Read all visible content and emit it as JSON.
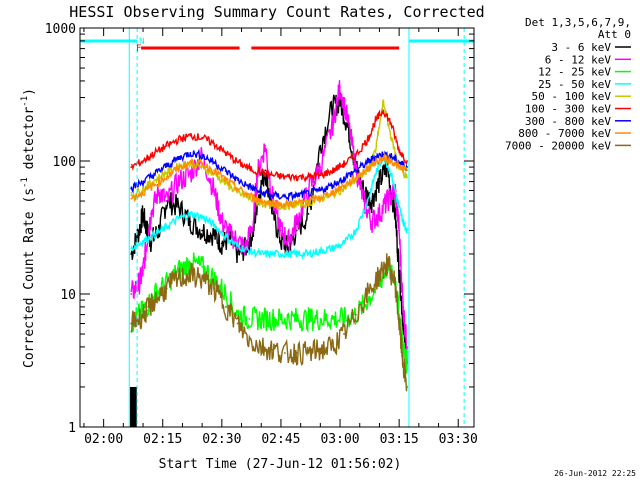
{
  "chart_data": {
    "type": "line",
    "title": "HESSI Observing Summary Count Rates, Corrected",
    "xlabel": "Start Time (27-Jun-12 01:56:02)",
    "ylabel_main": "Corrected Count Rate (s",
    "ylabel_sup1": "-1",
    "ylabel_mid": " detector",
    "ylabel_sup2": "-1",
    "ylabel_end": ")",
    "yscale": "log",
    "ylim": [
      1,
      1000
    ],
    "xlim_min": [
      -4.0,
      96.0
    ],
    "x_ticks": [
      {
        "t": 2,
        "label": "02:00"
      },
      {
        "t": 17,
        "label": "02:15"
      },
      {
        "t": 32,
        "label": "02:30"
      },
      {
        "t": 47,
        "label": "02:45"
      },
      {
        "t": 62,
        "label": "03:00"
      },
      {
        "t": 77,
        "label": "03:15"
      },
      {
        "t": 92,
        "label": "03:30"
      }
    ],
    "y_ticks": [
      {
        "v": 1,
        "label": "1"
      },
      {
        "v": 10,
        "label": "10"
      },
      {
        "v": 100,
        "label": "100"
      },
      {
        "v": 1000,
        "label": "1000"
      }
    ],
    "legend_header": [
      "Det 1,3,5,6,7,9,",
      "Att 0"
    ],
    "legend_placement": "right",
    "series": [
      {
        "name": "3 - 6 keV",
        "color": "#000000",
        "x": [
          9,
          11,
          12,
          13,
          14,
          16,
          18,
          21,
          24,
          27,
          30,
          32,
          34,
          36,
          38,
          40,
          41,
          43,
          45,
          47,
          49,
          51,
          54,
          57,
          60,
          62,
          64,
          66,
          68,
          70,
          72,
          74,
          76,
          77,
          78,
          79
        ],
        "values": [
          20,
          30,
          40,
          30,
          25,
          30,
          50,
          45,
          35,
          30,
          28,
          24,
          26,
          20,
          22,
          30,
          50,
          85,
          40,
          25,
          22,
          30,
          40,
          130,
          250,
          280,
          180,
          90,
          60,
          50,
          70,
          90,
          40,
          15,
          6,
          3
        ]
      },
      {
        "name": "6 - 12 keV",
        "color": "#ff00ff",
        "x": [
          9,
          11,
          12,
          13,
          14,
          16,
          18,
          21,
          24,
          27,
          30,
          32,
          34,
          36,
          38,
          40,
          41,
          43,
          45,
          47,
          49,
          51,
          54,
          57,
          60,
          62,
          64,
          66,
          68,
          70,
          72,
          74,
          76,
          77,
          78,
          79
        ],
        "values": [
          10,
          12,
          15,
          25,
          40,
          60,
          50,
          70,
          80,
          110,
          60,
          35,
          28,
          25,
          22,
          35,
          80,
          130,
          50,
          30,
          25,
          35,
          60,
          90,
          180,
          360,
          200,
          90,
          50,
          35,
          40,
          50,
          60,
          30,
          8,
          4
        ]
      },
      {
        "name": "12 - 25 keV",
        "color": "#00ff00",
        "x": [
          9,
          11,
          13,
          15,
          18,
          21,
          24,
          27,
          30,
          33,
          36,
          39,
          42,
          45,
          48,
          51,
          54,
          57,
          60,
          63,
          66,
          69,
          72,
          74,
          76,
          77,
          78,
          79
        ],
        "values": [
          6,
          7,
          8,
          10,
          12,
          15,
          17,
          16,
          13,
          10,
          7,
          6.5,
          6.5,
          6.5,
          6.5,
          6.5,
          6.5,
          6.5,
          6.5,
          6.5,
          7,
          9,
          12,
          16,
          13,
          7,
          4,
          3
        ]
      },
      {
        "name": "25 - 50 keV",
        "color": "#00ffff",
        "x": [
          9,
          12,
          15,
          18,
          21,
          24,
          27,
          30,
          33,
          36,
          39,
          42,
          45,
          48,
          51,
          54,
          57,
          60,
          63,
          66,
          69,
          71,
          73,
          75,
          77,
          78,
          79
        ],
        "values": [
          22,
          25,
          28,
          32,
          37,
          40,
          38,
          33,
          27,
          23,
          21,
          20,
          20,
          20,
          20,
          20,
          21,
          22,
          24,
          30,
          50,
          80,
          110,
          80,
          45,
          35,
          30
        ]
      },
      {
        "name": "50 - 100 keV",
        "color": "#c8c800",
        "x": [
          9,
          12,
          15,
          18,
          21,
          24,
          27,
          30,
          33,
          36,
          39,
          42,
          45,
          48,
          51,
          54,
          57,
          60,
          63,
          66,
          69,
          71,
          73,
          75,
          77,
          79
        ],
        "values": [
          55,
          62,
          72,
          82,
          92,
          95,
          90,
          80,
          68,
          58,
          52,
          48,
          46,
          46,
          47,
          48,
          52,
          56,
          62,
          72,
          85,
          120,
          280,
          150,
          90,
          75
        ]
      },
      {
        "name": "100 - 300 keV",
        "color": "#ff0000",
        "x": [
          9,
          12,
          15,
          18,
          21,
          24,
          27,
          30,
          33,
          36,
          39,
          42,
          45,
          48,
          51,
          54,
          57,
          60,
          63,
          66,
          69,
          71,
          73,
          75,
          77,
          79
        ],
        "values": [
          90,
          100,
          115,
          130,
          145,
          155,
          150,
          135,
          115,
          98,
          88,
          82,
          78,
          76,
          76,
          76,
          78,
          84,
          95,
          110,
          145,
          200,
          240,
          190,
          120,
          100
        ]
      },
      {
        "name": "300 - 800 keV",
        "color": "#0000ff",
        "x": [
          9,
          12,
          15,
          18,
          21,
          24,
          27,
          30,
          33,
          36,
          39,
          42,
          45,
          48,
          51,
          54,
          57,
          60,
          63,
          66,
          69,
          71,
          73,
          75,
          77,
          79
        ],
        "values": [
          62,
          70,
          80,
          92,
          105,
          115,
          110,
          98,
          84,
          72,
          64,
          58,
          55,
          54,
          55,
          57,
          60,
          66,
          74,
          85,
          98,
          108,
          112,
          108,
          98,
          90
        ]
      },
      {
        "name": "800 - 7000 keV",
        "color": "#ff8c00",
        "x": [
          9,
          12,
          15,
          18,
          21,
          24,
          27,
          30,
          33,
          36,
          39,
          42,
          45,
          48,
          51,
          54,
          57,
          60,
          63,
          66,
          69,
          71,
          73,
          75,
          77,
          79
        ],
        "values": [
          52,
          58,
          66,
          76,
          88,
          98,
          95,
          85,
          72,
          62,
          55,
          50,
          48,
          47,
          48,
          50,
          53,
          58,
          65,
          75,
          88,
          98,
          104,
          100,
          90,
          85
        ]
      },
      {
        "name": "7000 - 20000 keV",
        "color": "#8b6914",
        "x": [
          9,
          11,
          13,
          15,
          18,
          21,
          24,
          27,
          30,
          33,
          36,
          39,
          42,
          45,
          48,
          51,
          54,
          57,
          60,
          63,
          66,
          69,
          72,
          74,
          76,
          77,
          78,
          79
        ],
        "values": [
          6,
          6.5,
          7.5,
          9,
          11,
          13,
          14,
          13,
          11,
          8,
          6,
          4.5,
          4,
          3.8,
          3.6,
          3.6,
          3.6,
          3.8,
          4,
          5,
          7,
          10,
          14,
          17,
          12,
          6,
          3,
          2
        ]
      }
    ],
    "annotations": {
      "attenuator_bars": [
        {
          "x0": -4,
          "x1": 10.5
        },
        {
          "x0": 79.5,
          "x1": 96
        }
      ],
      "attenuator_color": "#00ffff",
      "flare_bars": [
        {
          "x0": 11.5,
          "x1": 36.5
        },
        {
          "x0": 39.5,
          "x1": 77
        }
      ],
      "flare_color": "#ff0000",
      "flare_label": "F",
      "night_label": "N",
      "boundary_lines": [
        {
          "t": 8.5,
          "style": "solid"
        },
        {
          "t": 10.5,
          "style": "dashed"
        },
        {
          "t": 79.5,
          "style": "solid"
        },
        {
          "t": 93.5,
          "style": "dashed"
        }
      ],
      "boundary_color": "#00ffff"
    }
  },
  "footer_date": "26-Jun-2012 22:25"
}
